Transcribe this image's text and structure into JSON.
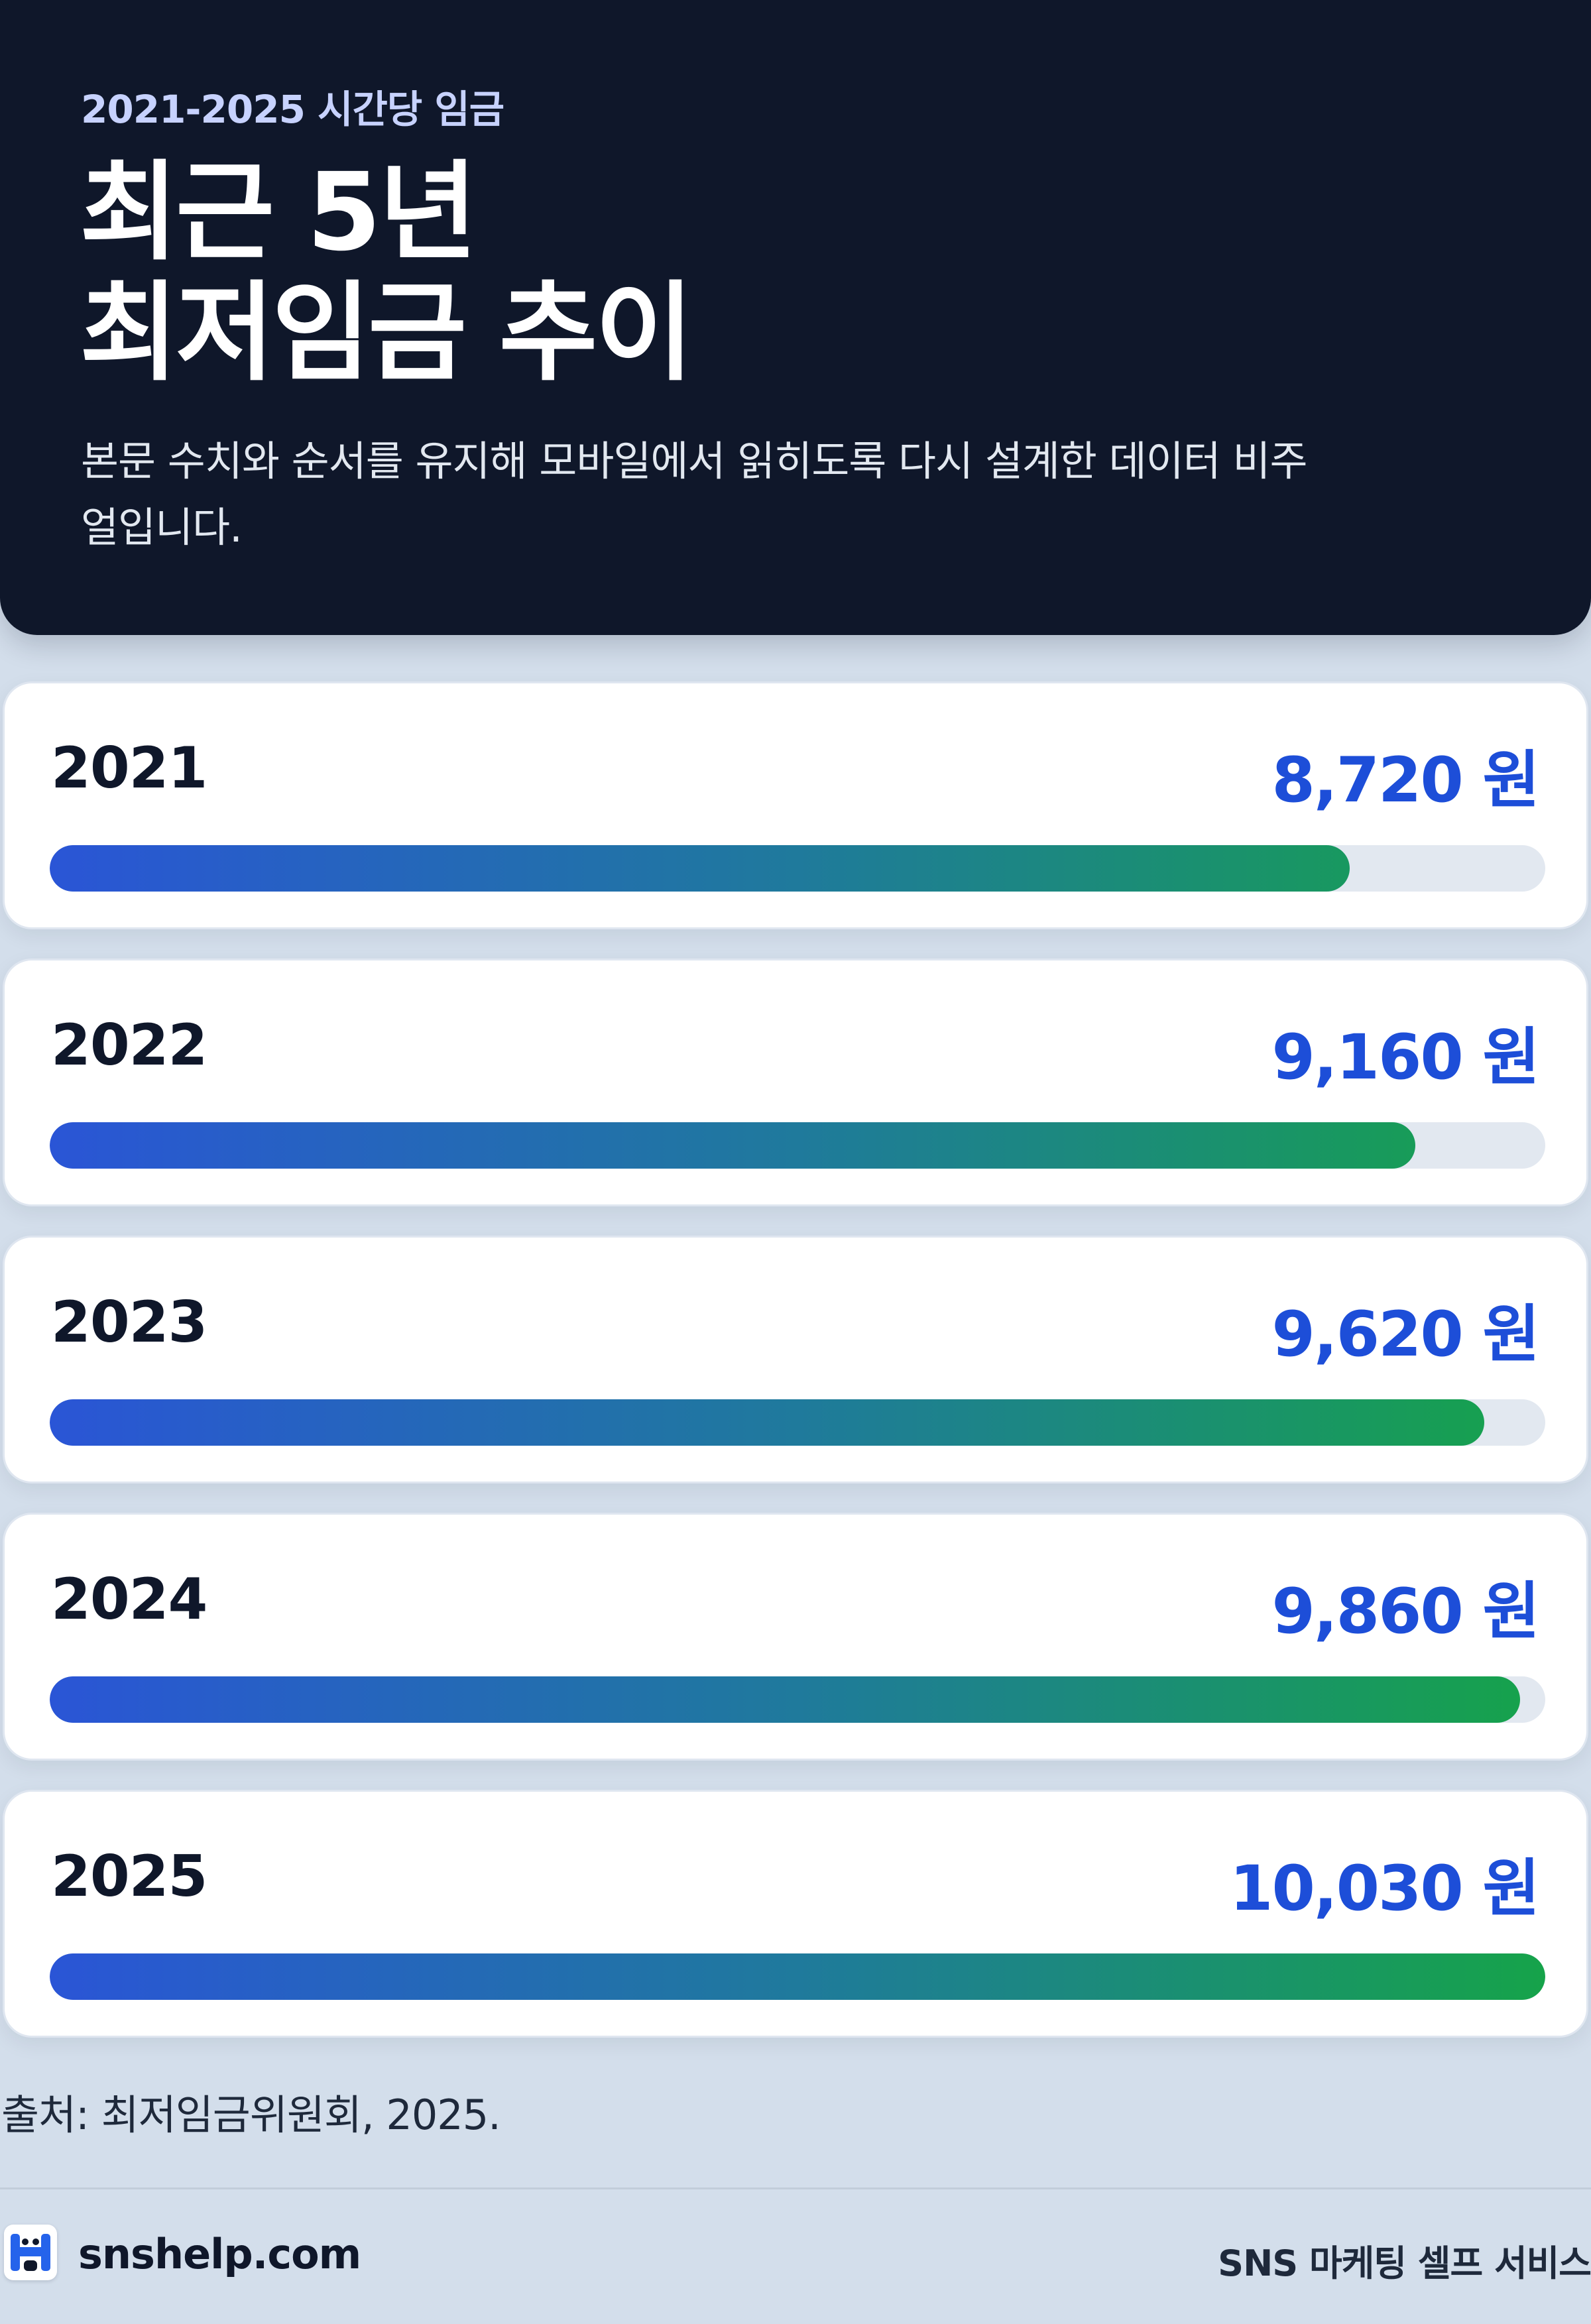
{
  "header": {
    "kicker": "2021-2025 시간당 임금",
    "title_line1": "최근 5년",
    "title_line2": "최저임금 추이",
    "description": "본문 수치와 순서를 유지해 모바일에서 읽히도록 다시 설계한 데이터 비주얼입니다."
  },
  "chart_data": {
    "type": "bar",
    "orientation": "horizontal",
    "categories": [
      "2021",
      "2022",
      "2023",
      "2024",
      "2025"
    ],
    "values": [
      8720,
      9160,
      9620,
      9860,
      10030
    ],
    "value_labels": [
      "8,720 원",
      "9,160 원",
      "9,620 원",
      "9,860 원",
      "10,030 원"
    ],
    "xlim": [
      0,
      10030
    ],
    "grid": false,
    "colors": {
      "start": "#2a55d6",
      "end": "#16a34a",
      "track": "#e2e8f0",
      "value_text": "#1d4ed8"
    }
  },
  "footer": {
    "source": "출처: 최저임금위원회, 2025.",
    "brand": "snshelp.com",
    "tagline": "SNS 마케팅 셀프 서비스",
    "logo_icon": "mascot-logo-icon"
  }
}
